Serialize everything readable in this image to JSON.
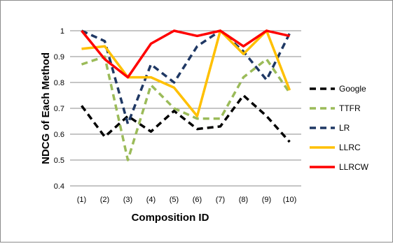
{
  "chart_data": {
    "type": "line",
    "categories": [
      "(1)",
      "(2)",
      "(3)",
      "(4)",
      "(5)",
      "(6)",
      "(7)",
      "(8)",
      "(9)",
      "(10)"
    ],
    "xlabel": "Composition ID",
    "ylabel": "NDCG of Each Method",
    "ylim": [
      0.4,
      1.0
    ],
    "yticks": [
      "0.4",
      "0.5",
      "0.6",
      "0.7",
      "0.8",
      "0.9",
      "1"
    ],
    "grid": true,
    "legend_position": "right",
    "series": [
      {
        "name": "Google",
        "color": "#000000",
        "dash": "dashed",
        "values": [
          0.71,
          0.59,
          0.67,
          0.61,
          0.69,
          0.62,
          0.63,
          0.75,
          0.67,
          0.57
        ]
      },
      {
        "name": "TTFR",
        "color": "#9BBB59",
        "dash": "dashed",
        "values": [
          0.87,
          0.9,
          0.5,
          0.79,
          0.7,
          0.66,
          0.66,
          0.82,
          0.89,
          0.76
        ]
      },
      {
        "name": "LR",
        "color": "#1F3864",
        "dash": "dashed",
        "values": [
          1.0,
          0.96,
          0.64,
          0.87,
          0.8,
          0.94,
          1.0,
          0.92,
          0.81,
          0.99
        ]
      },
      {
        "name": "LLRC",
        "color": "#FFC000",
        "dash": "solid",
        "values": [
          0.93,
          0.94,
          0.82,
          0.82,
          0.78,
          0.67,
          1.0,
          0.91,
          1.0,
          0.77
        ]
      },
      {
        "name": "LLRCW",
        "color": "#FF0000",
        "dash": "solid",
        "values": [
          1.0,
          0.89,
          0.82,
          0.95,
          1.0,
          0.98,
          1.0,
          0.94,
          1.0,
          0.98
        ]
      }
    ]
  }
}
